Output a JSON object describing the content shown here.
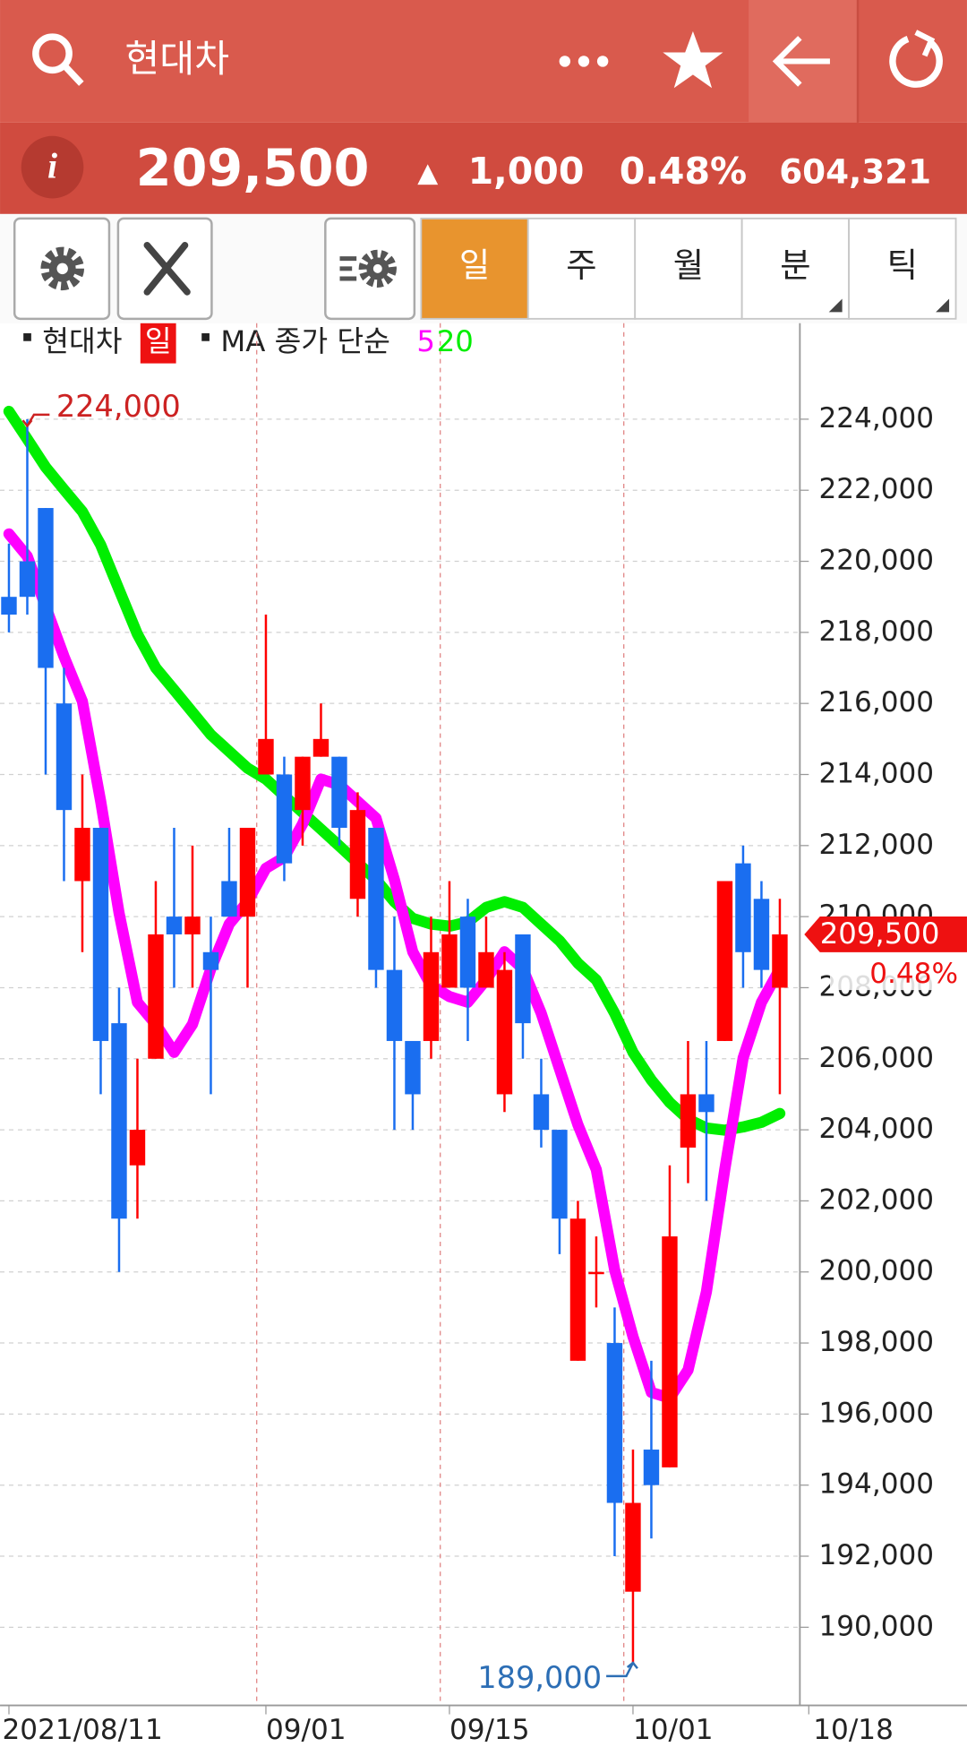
{
  "header": {
    "title": "현대차"
  },
  "quote": {
    "info": "i",
    "price": "209,500",
    "change_arrow": "▲",
    "change": "1,000",
    "change_pct": "0.48%",
    "volume": "604,321"
  },
  "toolbar": {
    "tabs": [
      "일",
      "주",
      "월",
      "분",
      "틱"
    ],
    "active": 0
  },
  "legend": {
    "symbol": "현대차",
    "period": "일",
    "ma_label": "MA 종가 단순"
  },
  "chart_data": {
    "type": "candlestick",
    "categories": [
      "2021/08/11",
      null,
      null,
      null,
      null,
      null,
      null,
      null,
      null,
      null,
      null,
      null,
      null,
      null,
      "09/01",
      null,
      null,
      null,
      null,
      null,
      null,
      null,
      null,
      null,
      "09/15",
      null,
      null,
      null,
      null,
      null,
      null,
      null,
      null,
      null,
      "10/01",
      null,
      null,
      null,
      null,
      null,
      null,
      null,
      null
    ],
    "axis_end_label": "10/18",
    "open": [
      219000,
      220000,
      221500,
      216000,
      211000,
      212500,
      207000,
      203000,
      206000,
      210000,
      209500,
      209000,
      211000,
      210000,
      214000,
      214000,
      213000,
      214500,
      214500,
      210500,
      212500,
      208500,
      206500,
      206500,
      208000,
      210000,
      208000,
      205000,
      209500,
      205000,
      204000,
      197500,
      200000,
      198000,
      191000,
      195000,
      194500,
      203500,
      205000,
      206500,
      211500,
      210500,
      208000
    ],
    "high": [
      220500,
      224000,
      221500,
      217000,
      214000,
      212500,
      208000,
      206000,
      211000,
      212500,
      212000,
      210000,
      212500,
      212500,
      218500,
      214500,
      214500,
      216000,
      214500,
      213500,
      212500,
      210000,
      206500,
      210000,
      211000,
      210500,
      210000,
      209000,
      209500,
      206000,
      204000,
      202000,
      201000,
      199000,
      195000,
      197500,
      203000,
      206500,
      206500,
      211000,
      212000,
      211000,
      210500
    ],
    "low": [
      218000,
      218500,
      214000,
      211000,
      209000,
      205000,
      200000,
      201500,
      206000,
      208000,
      208000,
      205000,
      210000,
      208000,
      214000,
      211000,
      212000,
      214500,
      212000,
      210000,
      208000,
      204000,
      204000,
      206000,
      208000,
      206500,
      208000,
      204500,
      206000,
      203500,
      200500,
      197500,
      199000,
      192000,
      189000,
      192500,
      194500,
      202500,
      202000,
      206500,
      208000,
      208000,
      205000
    ],
    "close": [
      218500,
      219000,
      217000,
      213000,
      212500,
      206500,
      201500,
      204000,
      209500,
      209500,
      210000,
      208500,
      210000,
      212500,
      215000,
      211500,
      214500,
      215000,
      212500,
      213000,
      208500,
      206500,
      205000,
      209000,
      209500,
      208000,
      209000,
      208500,
      207000,
      204000,
      201500,
      201500,
      200000,
      193500,
      193500,
      194000,
      201000,
      205000,
      204500,
      211000,
      209000,
      208500,
      209500
    ],
    "up_color": "#ff0000",
    "down_color": "#1a6ef0",
    "ma_series": [
      {
        "name": "5",
        "color": "#ff00ff",
        "values": [
          220770,
          220140,
          218730,
          217320,
          216060,
          213240,
          210100,
          207590,
          206970,
          206180,
          206970,
          208530,
          209790,
          210420,
          211360,
          211670,
          212610,
          213870,
          213710,
          213240,
          212770,
          211040,
          209010,
          208060,
          207750,
          207590,
          208220,
          209010,
          208530,
          207280,
          205710,
          204140,
          202880,
          200060,
          198180,
          196610,
          196450,
          197240,
          199440,
          202880,
          206020,
          207590,
          208530
        ]
      },
      {
        "name": "20",
        "color": "#00ee00",
        "values": [
          224220,
          223440,
          222650,
          222020,
          221400,
          220460,
          219200,
          217950,
          217000,
          216380,
          215750,
          215120,
          214650,
          214180,
          213870,
          213400,
          212930,
          212460,
          211990,
          211510,
          211040,
          210420,
          209950,
          209790,
          209730,
          209850,
          210260,
          210420,
          210260,
          209790,
          209320,
          208690,
          208220,
          207280,
          206180,
          205400,
          204770,
          204300,
          204050,
          203990,
          204080,
          204210,
          204460
        ]
      }
    ],
    "ylim": [
      187800,
      226700
    ],
    "yticks": [
      {
        "value": 190000,
        "label": "190,000"
      },
      {
        "value": 192000,
        "label": "192,000"
      },
      {
        "value": 194000,
        "label": "194,000"
      },
      {
        "value": 196000,
        "label": "196,000"
      },
      {
        "value": 198000,
        "label": "198,000"
      },
      {
        "value": 200000,
        "label": "200,000"
      },
      {
        "value": 202000,
        "label": "202,000"
      },
      {
        "value": 204000,
        "label": "204,000"
      },
      {
        "value": 206000,
        "label": "206,000"
      },
      {
        "value": 208000,
        "label": "208,000"
      },
      {
        "value": 210000,
        "label": "210,000"
      },
      {
        "value": 212000,
        "label": "212,000"
      },
      {
        "value": 214000,
        "label": "214,000"
      },
      {
        "value": 216000,
        "label": "216,000"
      },
      {
        "value": 218000,
        "label": "218,000"
      },
      {
        "value": 220000,
        "label": "220,000"
      },
      {
        "value": 222000,
        "label": "222,000"
      },
      {
        "value": 224000,
        "label": "224,000"
      }
    ],
    "grid": true,
    "annotations": {
      "high": {
        "value": 224000,
        "label": "224,000"
      },
      "low": {
        "value": 189000,
        "label": "189,000"
      }
    }
  }
}
